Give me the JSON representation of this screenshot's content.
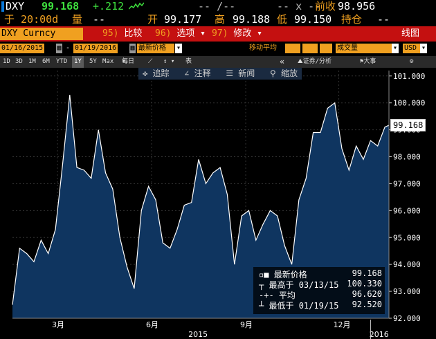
{
  "quote": {
    "ticker": "DXY",
    "last": "99.168",
    "change": "+.212",
    "dash1": "-- /--",
    "dash2": "-- x --",
    "prev_close_label": "前收",
    "prev_close": "98.956",
    "time": "于 20:00d",
    "volume_label": "量",
    "volume": "--",
    "open_label": "开",
    "open": "99.177",
    "high_label": "高",
    "high": "99.188",
    "low_label": "低",
    "low": "99.150",
    "position_label": "持仓",
    "position": "--"
  },
  "toolbar": {
    "security": "DXY Curncy",
    "tab1_num": "95)",
    "tab1": "比较",
    "tab2_num": "96)",
    "tab2": "选项",
    "tab3_num": "97)",
    "tab3": "修改",
    "line_chart": "线图"
  },
  "controls": {
    "start_date": "01/16/2015",
    "end_date": "01/19/2016",
    "price_field": "最新价格",
    "ma_label": "移动平均",
    "volume_field": "成交量",
    "currency": "USD"
  },
  "periods": {
    "items": [
      "1D",
      "3D",
      "1M",
      "6M",
      "YTD",
      "1Y",
      "5Y",
      "Max"
    ],
    "active": "1Y",
    "freq": "每日",
    "table": "表",
    "securities": "证券/分析",
    "events": "大事"
  },
  "chart_tools": {
    "track": "追踪",
    "annotate": "注释",
    "news": "新闻",
    "zoom": "缩放"
  },
  "chart_data": {
    "type": "area",
    "x": [
      "2015-01-16",
      "2015-01-23",
      "2015-01-30",
      "2015-02-06",
      "2015-02-13",
      "2015-02-20",
      "2015-02-27",
      "2015-03-06",
      "2015-03-13",
      "2015-03-20",
      "2015-03-27",
      "2015-04-03",
      "2015-04-10",
      "2015-04-17",
      "2015-04-24",
      "2015-05-01",
      "2015-05-08",
      "2015-05-15",
      "2015-05-22",
      "2015-05-29",
      "2015-06-05",
      "2015-06-12",
      "2015-06-19",
      "2015-06-26",
      "2015-07-03",
      "2015-07-10",
      "2015-07-17",
      "2015-07-24",
      "2015-07-31",
      "2015-08-07",
      "2015-08-14",
      "2015-08-21",
      "2015-08-28",
      "2015-09-04",
      "2015-09-11",
      "2015-09-18",
      "2015-09-25",
      "2015-10-02",
      "2015-10-09",
      "2015-10-16",
      "2015-10-23",
      "2015-10-30",
      "2015-11-06",
      "2015-11-13",
      "2015-11-20",
      "2015-11-27",
      "2015-12-04",
      "2015-12-11",
      "2015-12-18",
      "2015-12-25",
      "2016-01-01",
      "2016-01-08",
      "2016-01-15",
      "2016-01-19"
    ],
    "values": [
      92.5,
      94.6,
      94.4,
      94.1,
      94.9,
      94.4,
      95.3,
      97.7,
      100.3,
      97.6,
      97.5,
      97.2,
      99.0,
      97.4,
      96.8,
      95.0,
      93.9,
      93.1,
      96.0,
      96.9,
      96.4,
      94.8,
      94.6,
      95.3,
      96.2,
      96.3,
      97.9,
      97.0,
      97.4,
      97.6,
      96.6,
      94.0,
      95.8,
      96.0,
      94.9,
      95.5,
      96.0,
      95.8,
      94.7,
      94.0,
      96.4,
      97.2,
      98.9,
      98.9,
      99.8,
      100.0,
      98.3,
      97.5,
      98.4,
      97.9,
      98.6,
      98.4,
      99.1,
      99.168
    ],
    "ylim": [
      92.0,
      101.2
    ],
    "y_ticks": [
      "101.000",
      "100.000",
      "99.000",
      "98.000",
      "97.000",
      "96.000",
      "95.000",
      "94.000",
      "93.000",
      "92.000"
    ],
    "y_tick_values": [
      101,
      100,
      99,
      98,
      97,
      96,
      95,
      94,
      93,
      92
    ],
    "x_ticks": [
      "3月",
      "6月",
      "9月",
      "12月"
    ],
    "x_tick_dates": [
      "2015-03-01",
      "2015-06-01",
      "2015-09-01",
      "2015-12-01"
    ],
    "year_labels": [
      "2015",
      "2016"
    ],
    "year_label_dates": [
      "2015-07-15",
      "2016-01-08"
    ],
    "year_divider_date": "2016-01-01",
    "grid": true,
    "line_color": "#ffffff",
    "fill_color": "#0f3560"
  },
  "legend": {
    "last_label": "最新价格",
    "last_value": "99.168",
    "high_label": "最高于 03/13/15",
    "high_value": "100.330",
    "avg_label": "平均",
    "avg_value": "96.620",
    "low_label": "最低于 01/19/15",
    "low_value": "92.520"
  },
  "colors": {
    "accent_orange": "#f0a020",
    "header_red": "#c41010",
    "up_green": "#3ee03e"
  }
}
